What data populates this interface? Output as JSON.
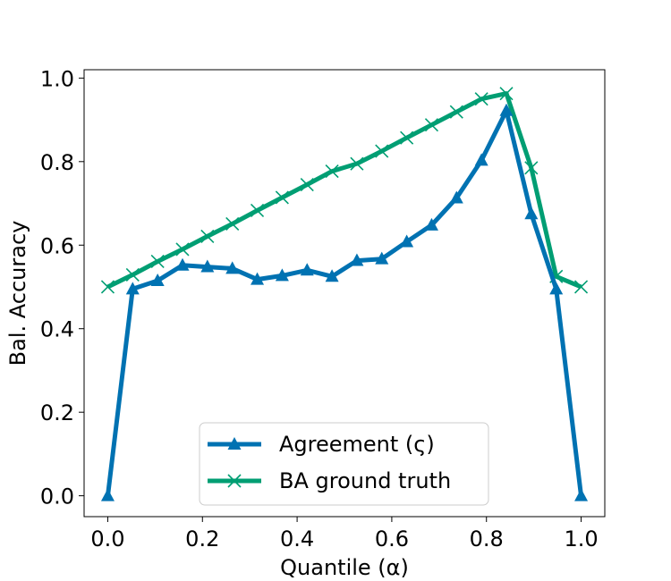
{
  "chart_data": {
    "type": "line",
    "xlabel": "Quantile (α)",
    "ylabel": "Bal. Accuracy",
    "xlim": [
      -0.05,
      1.05
    ],
    "ylim": [
      -0.05,
      1.02
    ],
    "xticks": [
      "0.0",
      "0.2",
      "0.4",
      "0.6",
      "0.8",
      "1.0"
    ],
    "yticks": [
      "0.0",
      "0.2",
      "0.4",
      "0.6",
      "0.8",
      "1.0"
    ],
    "legend_position": "bottom-center",
    "grid": false,
    "series": [
      {
        "name": "Agreement (ς)",
        "color": "#0072b2",
        "marker": "triangle",
        "x": [
          0.0,
          0.0526,
          0.1053,
          0.1579,
          0.2105,
          0.2632,
          0.3158,
          0.3684,
          0.4211,
          0.4737,
          0.5263,
          0.5789,
          0.6316,
          0.6842,
          0.7368,
          0.7895,
          0.8421,
          0.8947,
          0.9474,
          1.0
        ],
        "y": [
          0.0,
          0.495,
          0.515,
          0.552,
          0.548,
          0.544,
          0.518,
          0.527,
          0.54,
          0.525,
          0.563,
          0.567,
          0.608,
          0.648,
          0.713,
          0.803,
          0.922,
          0.675,
          0.495,
          0.0
        ]
      },
      {
        "name": "BA ground truth",
        "color": "#009e73",
        "marker": "x",
        "x": [
          0.0,
          0.0526,
          0.1053,
          0.1579,
          0.2105,
          0.2632,
          0.3158,
          0.3684,
          0.4211,
          0.4737,
          0.5263,
          0.5789,
          0.6316,
          0.6842,
          0.7368,
          0.7895,
          0.8421,
          0.8947,
          0.9474,
          1.0
        ],
        "y": [
          0.5,
          0.529,
          0.561,
          0.59,
          0.621,
          0.651,
          0.683,
          0.714,
          0.745,
          0.777,
          0.795,
          0.825,
          0.857,
          0.888,
          0.919,
          0.95,
          0.963,
          0.785,
          0.525,
          0.5
        ]
      }
    ]
  }
}
